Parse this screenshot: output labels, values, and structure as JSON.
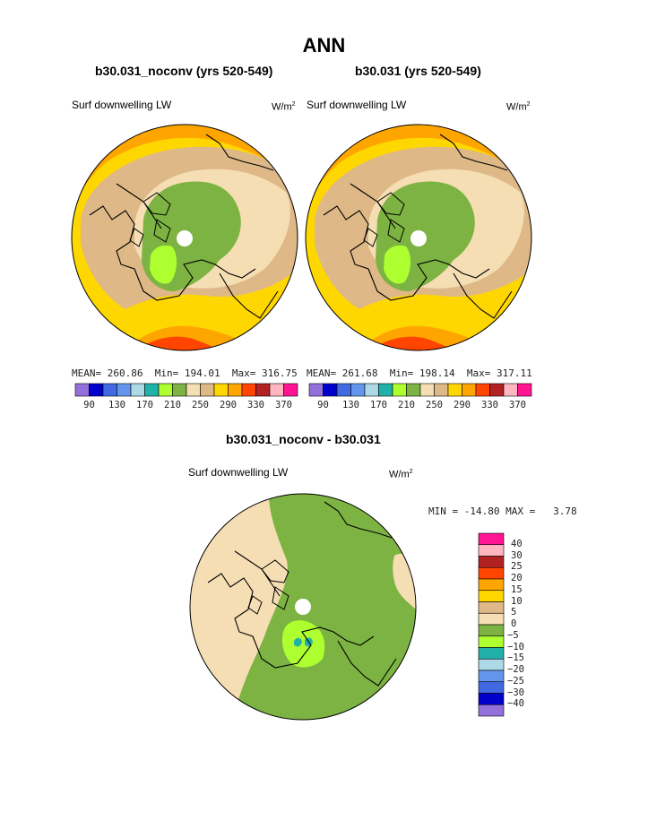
{
  "colors": {
    "c90": "#9370DB",
    "c110": "#0000CD",
    "c130": "#4169E1",
    "c150": "#6495ED",
    "c170": "#ADD8E6",
    "c190": "#20B2AA",
    "c210": "#ADFF2F",
    "c230": "#7CB342",
    "c250": "#F5DEB3",
    "c270": "#DEB887",
    "c290": "#FFD700",
    "c310": "#FFA500",
    "c330": "#FF4500",
    "c350": "#B22222",
    "c370": "#FFB6C1",
    "c390": "#FF1493",
    "land": "#000000"
  },
  "chart_data": [
    {
      "type": "heatmap",
      "title": "ANN",
      "subtitle": "b30.031_noconv (yrs 520-549)",
      "panel_label": "Surf downwelling LW",
      "units": "W/m",
      "units_sup": "2",
      "stats": {
        "mean_label": "MEAN=",
        "mean": "260.86",
        "min_label": "Min=",
        "min": "194.01",
        "max_label": "Max=",
        "max": "316.75"
      },
      "colorbar_ticks": [
        "90",
        "130",
        "170",
        "210",
        "250",
        "290",
        "330",
        "370"
      ]
    },
    {
      "type": "heatmap",
      "subtitle": "b30.031 (yrs 520-549)",
      "panel_label": "Surf downwelling LW",
      "units": "W/m",
      "units_sup": "2",
      "stats": {
        "mean_label": "MEAN=",
        "mean": "261.68",
        "min_label": "Min=",
        "min": "198.14",
        "max_label": "Max=",
        "max": "317.11"
      },
      "colorbar_ticks": [
        "90",
        "130",
        "170",
        "210",
        "250",
        "290",
        "330",
        "370"
      ]
    },
    {
      "type": "heatmap",
      "subtitle": "b30.031_noconv - b30.031",
      "panel_label": "Surf downwelling LW",
      "units": "W/m",
      "units_sup": "2",
      "stats": {
        "min_label": "MIN =",
        "min": "-14.80",
        "max_label": "MAX =",
        "max": "3.78"
      },
      "colorbar_ticks": [
        "40",
        "30",
        "25",
        "20",
        "15",
        "10",
        "5",
        "0",
        "-5",
        "-10",
        "-15",
        "-20",
        "-25",
        "-30",
        "-40"
      ]
    }
  ]
}
